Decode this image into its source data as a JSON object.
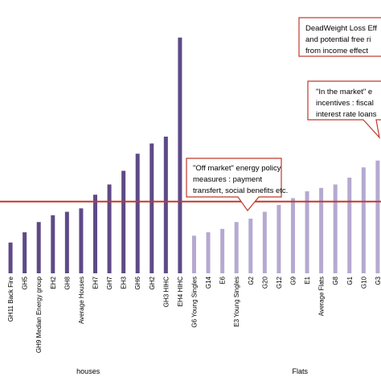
{
  "chart_data": {
    "type": "bar",
    "categories": [
      "GH1",
      "GH11 Back Fire",
      "GH5",
      "GH9 Median Energy group",
      "EH2",
      "GH8",
      "Average Houses",
      "EH7",
      "GH7",
      "EH3",
      "GH6",
      "GH2",
      "GH3 HIHC",
      "EH4 HIHC",
      "G6 Young Singles",
      "G14",
      "E6",
      "E3 Young Singles",
      "G2",
      "G20",
      "G12",
      "G9",
      "E1",
      "Average Flats",
      "G8",
      "G1",
      "G10",
      "G3",
      "G4",
      "G7"
    ],
    "series": [
      {
        "values": [
          5,
          9,
          12,
          15,
          17,
          18,
          19,
          23,
          26,
          30,
          35,
          38,
          40,
          69,
          11,
          12,
          13,
          15,
          16,
          18,
          20,
          22,
          24,
          25,
          26,
          28,
          31,
          33,
          41,
          60
        ],
        "colors": [
          "#5e4a87",
          "#5e4a87",
          "#5e4a87",
          "#5e4a87",
          "#5e4a87",
          "#5e4a87",
          "#5e4a87",
          "#5e4a87",
          "#5e4a87",
          "#5e4a87",
          "#5e4a87",
          "#5e4a87",
          "#5e4a87",
          "#5e4a87",
          "#b5a9d1",
          "#b5a9d1",
          "#b5a9d1",
          "#b5a9d1",
          "#b5a9d1",
          "#b5a9d1",
          "#b5a9d1",
          "#b5a9d1",
          "#b5a9d1",
          "#b5a9d1",
          "#b5a9d1",
          "#b5a9d1",
          "#b5a9d1",
          "#b5a9d1",
          "#b5a9d1",
          "#b5a9d1"
        ]
      }
    ],
    "reference_line": {
      "value": 21,
      "color": "#c0392b"
    },
    "ylim": [
      0,
      80
    ],
    "grid": false,
    "groups": [
      {
        "label": "houses",
        "from": 0,
        "to": 13
      },
      {
        "label": "Flats",
        "from": 14,
        "to": 29
      }
    ],
    "annotations": [
      {
        "name": "callout-deadweight",
        "lines": [
          "DeadWeight Loss Eff",
          "and potential free ri",
          "from income effect"
        ]
      },
      {
        "name": "callout-in-market",
        "lines": [
          "\"In the market\" e",
          "incentives : fiscal",
          "interest rate loans"
        ]
      },
      {
        "name": "callout-off-market",
        "lines": [
          "\"Off market\" energy policy",
          "measures : payment",
          "transfert, social benefits etc."
        ]
      }
    ]
  }
}
